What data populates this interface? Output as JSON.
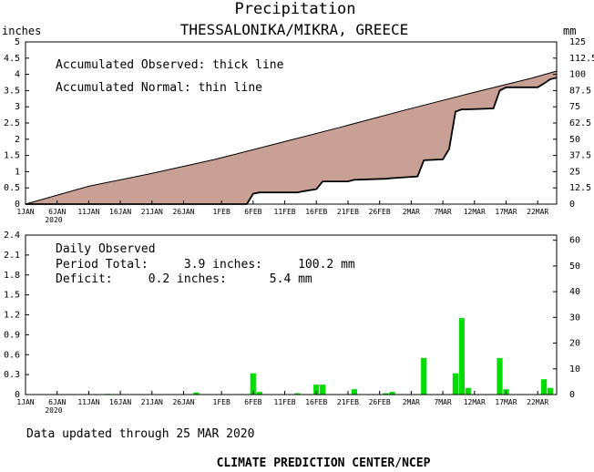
{
  "header": {
    "title": "Precipitation",
    "station": "THESSALONIKA/MIKRA, GREECE"
  },
  "colors": {
    "accumulated_fill": "#c8a096",
    "daily_bar": "#00dd00",
    "frame": "#000000"
  },
  "footer": {
    "updated": "Data updated through 25 MAR 2020",
    "credit": "CLIMATE PREDICTION CENTER/NCEP"
  },
  "chart_data": [
    {
      "type": "area",
      "title": "Precipitation",
      "subtitle": "THESSALONIKA/MIKRA, GREECE",
      "left_unit": "inches",
      "right_unit": "mm",
      "legend": [
        "Accumulated Observed: thick line",
        "Accumulated Normal: thin line"
      ],
      "legend_placement": "top-left",
      "x_range": [
        "2020-01-01",
        "2020-03-25"
      ],
      "x_tick_labels": [
        "1JAN",
        "6JAN",
        "11JAN",
        "16JAN",
        "21JAN",
        "26JAN",
        "1FEB",
        "6FEB",
        "11FEB",
        "16FEB",
        "21FEB",
        "26FEB",
        "2MAR",
        "7MAR",
        "12MAR",
        "17MAR",
        "22MAR"
      ],
      "x_year_label": "2020",
      "ylim_inches": [
        0,
        5
      ],
      "y_ticks_inches": [
        "0",
        "0.5",
        "1",
        "1.5",
        "2",
        "2.5",
        "3",
        "3.5",
        "4",
        "4.5",
        "5"
      ],
      "ylim_mm": [
        0,
        125
      ],
      "y_ticks_mm": [
        "0",
        "12.5",
        "25",
        "37.5",
        "50",
        "62.5",
        "75",
        "87.5",
        "100",
        "112.5",
        "125"
      ],
      "series": [
        {
          "name": "Accumulated Normal",
          "x": [
            "2020-01-01",
            "2020-01-11",
            "2020-01-21",
            "2020-01-31",
            "2020-02-10",
            "2020-02-20",
            "2020-03-01",
            "2020-03-11",
            "2020-03-21",
            "2020-03-25"
          ],
          "y": [
            0.0,
            0.55,
            0.95,
            1.38,
            1.88,
            2.38,
            2.9,
            3.4,
            3.88,
            4.1
          ]
        },
        {
          "name": "Accumulated Observed",
          "x": [
            "2020-01-01",
            "2020-01-30",
            "2020-02-05",
            "2020-02-06",
            "2020-02-07",
            "2020-02-13",
            "2020-02-14",
            "2020-02-16",
            "2020-02-17",
            "2020-02-21",
            "2020-02-22",
            "2020-02-27",
            "2020-02-28",
            "2020-03-03",
            "2020-03-04",
            "2020-03-07",
            "2020-03-08",
            "2020-03-09",
            "2020-03-10",
            "2020-03-11",
            "2020-03-15",
            "2020-03-16",
            "2020-03-17",
            "2020-03-22",
            "2020-03-23",
            "2020-03-24",
            "2020-03-25"
          ],
          "y": [
            0.0,
            0.0,
            0.0,
            0.32,
            0.36,
            0.36,
            0.4,
            0.46,
            0.7,
            0.7,
            0.75,
            0.78,
            0.8,
            0.85,
            1.35,
            1.38,
            1.7,
            2.85,
            2.92,
            2.92,
            2.95,
            3.5,
            3.6,
            3.6,
            3.72,
            3.85,
            3.9
          ]
        }
      ]
    },
    {
      "type": "bar",
      "left_unit": "inches",
      "right_unit": "mm",
      "annotation": {
        "heading": "Daily Observed",
        "total_line": "Period Total:     3.9 inches:     100.2 mm",
        "deficit_line": "Deficit:     0.2 inches:      5.4 mm"
      },
      "x_range": [
        "2020-01-01",
        "2020-03-25"
      ],
      "x_tick_labels": [
        "1JAN",
        "6JAN",
        "11JAN",
        "16JAN",
        "21JAN",
        "26JAN",
        "1FEB",
        "6FEB",
        "11FEB",
        "16FEB",
        "21FEB",
        "26FEB",
        "2MAR",
        "7MAR",
        "12MAR",
        "17MAR",
        "22MAR"
      ],
      "x_year_label": "2020",
      "ylim_inches": [
        0,
        2.4
      ],
      "y_ticks_inches": [
        "0",
        "0.3",
        "0.6",
        "0.9",
        "1.2",
        "1.5",
        "1.8",
        "2.1",
        "2.4"
      ],
      "ylim_mm": [
        0,
        62
      ],
      "y_ticks_mm": [
        "0",
        "10",
        "20",
        "30",
        "40",
        "50",
        "60"
      ],
      "series": [
        {
          "name": "Daily Observed",
          "x": [
            "2020-01-14",
            "2020-01-28",
            "2020-02-06",
            "2020-02-07",
            "2020-02-13",
            "2020-02-16",
            "2020-02-17",
            "2020-02-22",
            "2020-02-27",
            "2020-02-28",
            "2020-03-04",
            "2020-03-09",
            "2020-03-10",
            "2020-03-11",
            "2020-03-16",
            "2020-03-17",
            "2020-03-23",
            "2020-03-24"
          ],
          "values": [
            0.01,
            0.03,
            0.32,
            0.04,
            0.02,
            0.15,
            0.15,
            0.08,
            0.02,
            0.04,
            0.55,
            0.32,
            1.15,
            0.1,
            0.55,
            0.08,
            0.23,
            0.1
          ]
        }
      ]
    }
  ]
}
